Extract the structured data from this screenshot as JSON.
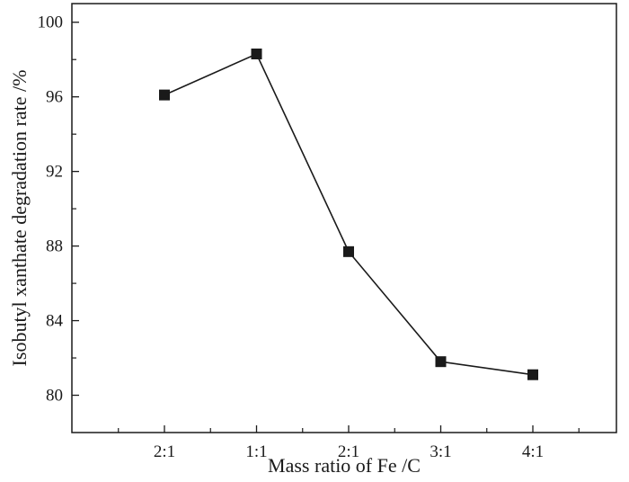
{
  "chart_data": {
    "type": "line",
    "categories": [
      "2:1",
      "1:1",
      "2:1",
      "3:1",
      "4:1"
    ],
    "series": [
      {
        "values": [
          96.1,
          98.3,
          87.7,
          81.8,
          81.1
        ],
        "marker": "square",
        "color": "#1a1a1a"
      }
    ],
    "xlabel": "Mass ratio of Fe /C",
    "ylabel": "Isobutyl xanthate degradation rate /%",
    "ylim": [
      78,
      101
    ],
    "yticks": [
      80,
      84,
      88,
      92,
      96,
      100
    ],
    "grid": false,
    "legend": "none"
  }
}
